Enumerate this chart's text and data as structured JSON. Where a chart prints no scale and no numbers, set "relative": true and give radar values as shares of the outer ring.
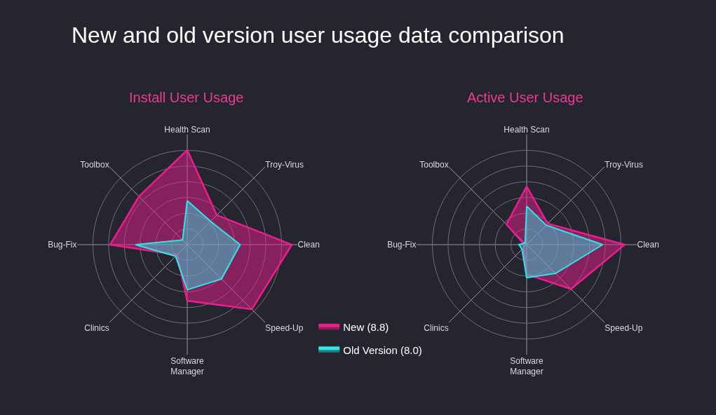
{
  "chart_data": [
    {
      "type": "radar",
      "title": "New and old version user usage data comparison",
      "subtitle": "Install User Usage",
      "relative": true,
      "legend": "bottom right",
      "categories": [
        "Health Scan",
        "Troy-Virus",
        "Clean",
        "Speed-Up",
        "Software\nManager",
        "Clinics",
        "Bug-Fix",
        "Toolbox"
      ],
      "series": [
        {
          "name": "New (8.8)",
          "color": "#e91e8c",
          "values": [
            0.86,
            0.38,
            0.95,
            0.83,
            0.51,
            0.13,
            0.7,
            0.62
          ]
        },
        {
          "name": "Old Version (8.0)",
          "color": "#2ee6e6",
          "values": [
            0.4,
            0.3,
            0.48,
            0.44,
            0.41,
            0.15,
            0.47,
            0.06
          ]
        }
      ]
    },
    {
      "type": "radar",
      "subtitle": "Active User Usage",
      "relative": true,
      "categories": [
        "Health Scan",
        "Troy-Virus",
        "Clean",
        "Speed-Up",
        "Software\nManager",
        "Clinics",
        "Bug-Fix",
        "Toolbox"
      ],
      "series": [
        {
          "color": "#e91e8c",
          "values": [
            0.53,
            0.27,
            0.89,
            0.57,
            0.27,
            0.04,
            0.02,
            0.26
          ]
        },
        {
          "color": "#2ee6e6",
          "values": [
            0.35,
            0.25,
            0.69,
            0.37,
            0.3,
            0.06,
            0.07,
            0.02
          ]
        }
      ]
    }
  ]
}
